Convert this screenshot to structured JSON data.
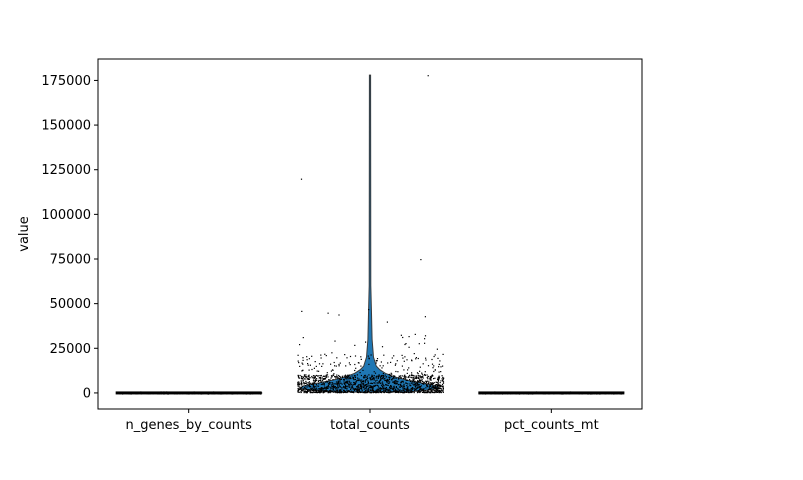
{
  "chart_data": {
    "type": "violin",
    "title": "",
    "xlabel": "",
    "ylabel": "value",
    "ylim": [
      -9000,
      187000
    ],
    "yticks": [
      0,
      25000,
      50000,
      75000,
      100000,
      125000,
      150000,
      175000
    ],
    "ytick_labels": [
      "0",
      "25000",
      "50000",
      "75000",
      "100000",
      "125000",
      "150000",
      "175000"
    ],
    "categories": [
      "n_genes_by_counts",
      "total_counts",
      "pct_counts_mt"
    ],
    "grid": false,
    "violin_color": "#1f77b4",
    "point_color": "#000000",
    "series": [
      {
        "category": "n_genes_by_counts",
        "min": 0,
        "max": 1500,
        "median": 500
      },
      {
        "category": "total_counts",
        "min": 500,
        "max": 178000,
        "median": 4500,
        "q1": 2500,
        "q3": 7000
      },
      {
        "category": "pct_counts_mt",
        "min": 0,
        "max": 60,
        "median": 5
      }
    ],
    "outliers": [
      {
        "category": "total_counts",
        "value": 178000
      },
      {
        "category": "total_counts",
        "value": 120000
      },
      {
        "category": "total_counts",
        "value": 75000
      },
      {
        "category": "total_counts",
        "value": 47000
      },
      {
        "category": "total_counts",
        "value": 46000
      },
      {
        "category": "total_counts",
        "value": 45000
      },
      {
        "category": "total_counts",
        "value": 44000
      },
      {
        "category": "total_counts",
        "value": 43000
      },
      {
        "category": "total_counts",
        "value": 40000
      }
    ]
  }
}
